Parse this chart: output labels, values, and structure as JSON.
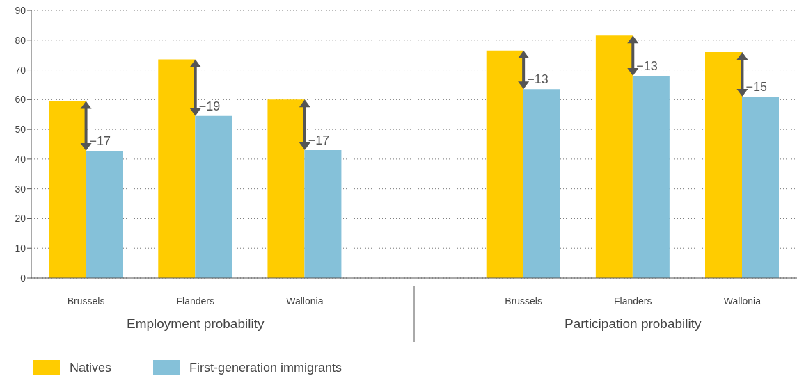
{
  "chart_data": {
    "type": "bar",
    "categories": [
      "Brussels",
      "Flanders",
      "Wallonia",
      null,
      "Brussels",
      "Flanders",
      "Wallonia"
    ],
    "series": [
      {
        "name": "Natives",
        "color": "#ffcc00",
        "values": [
          59.5,
          73.5,
          60,
          null,
          76.5,
          81.5,
          76
        ]
      },
      {
        "name": "First-generation immigrants",
        "color": "#85c1d9",
        "values": [
          42.8,
          54.5,
          43,
          null,
          63.5,
          68,
          61
        ]
      }
    ],
    "ylim": [
      0,
      90
    ],
    "yticks": [
      0,
      10,
      20,
      30,
      40,
      50,
      60,
      70,
      80,
      90
    ],
    "grid": "y",
    "legend": "bottom left",
    "annotations": [
      "Employment probability",
      "Participation probability",
      {
        "text": "−17",
        "y": 42.8
      },
      {
        "text": "−19",
        "y": 54.5
      },
      {
        "text": "−17",
        "y": 43
      },
      {
        "text": "−13",
        "y": 63.5
      },
      {
        "text": "−13",
        "y": 68
      },
      {
        "text": "−15",
        "y": 61
      }
    ]
  }
}
